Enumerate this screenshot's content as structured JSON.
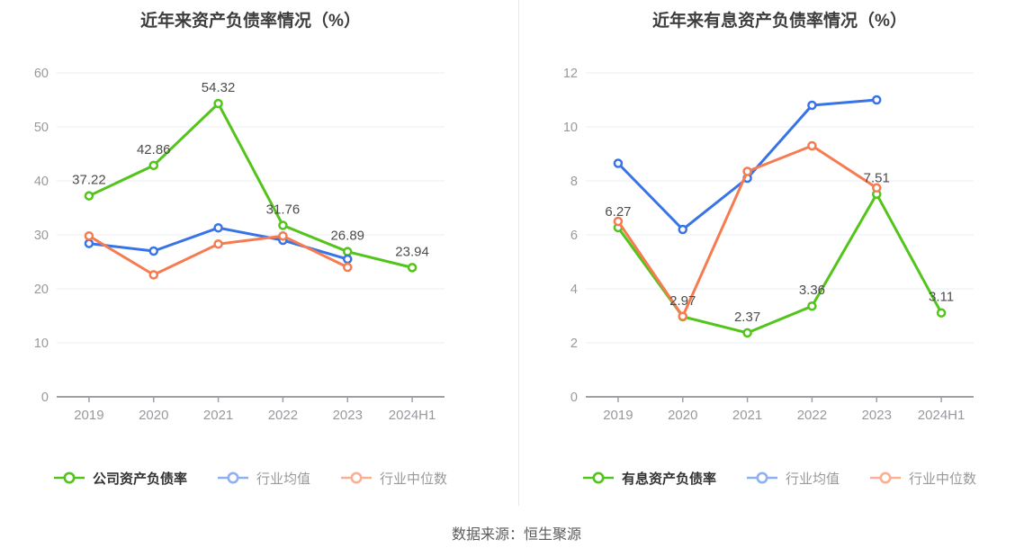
{
  "source_text": "数据来源：恒生聚源",
  "palette": {
    "green": "#52c41a",
    "blue": "#3873e8",
    "orange": "#f77b50",
    "legend_blue": "#8fb1f2",
    "legend_orange": "#fab093",
    "grid": "#e9eef6",
    "axis": "#9fa0a6",
    "tick_text": "#98999f",
    "label_text": "#4c4c4c",
    "title_text": "#3e3e3e"
  },
  "chart_data": [
    {
      "type": "line",
      "title": "近年来资产负债率情况（%）",
      "categories": [
        "2019",
        "2020",
        "2021",
        "2022",
        "2023",
        "2024H1"
      ],
      "ylim": [
        0,
        60
      ],
      "yticks": [
        0,
        10,
        20,
        30,
        40,
        50,
        60
      ],
      "grid": true,
      "legend_position": "bottom",
      "series": [
        {
          "name": "公司资产负债率",
          "color_key": "green",
          "values": [
            37.22,
            42.86,
            54.32,
            31.76,
            26.89,
            23.94
          ],
          "labels": [
            "37.22",
            "42.86",
            "54.32",
            "31.76",
            "26.89",
            "23.94"
          ]
        },
        {
          "name": "行业均值",
          "color_key": "blue",
          "values": [
            28.4,
            27.0,
            31.3,
            29.0,
            25.5,
            null
          ]
        },
        {
          "name": "行业中位数",
          "color_key": "orange",
          "values": [
            29.8,
            22.6,
            28.3,
            29.8,
            24.0,
            null
          ]
        }
      ]
    },
    {
      "type": "line",
      "title": "近年来有息资产负债率情况（%）",
      "categories": [
        "2019",
        "2020",
        "2021",
        "2022",
        "2023",
        "2024H1"
      ],
      "ylim": [
        0,
        12
      ],
      "yticks": [
        0,
        2,
        4,
        6,
        8,
        10,
        12
      ],
      "grid": true,
      "legend_position": "bottom",
      "series": [
        {
          "name": "有息资产负债率",
          "color_key": "green",
          "values": [
            6.27,
            2.97,
            2.37,
            3.36,
            7.51,
            3.11
          ],
          "labels": [
            "6.27",
            "2.97",
            "2.37",
            "3.36",
            "7.51",
            "3.11"
          ]
        },
        {
          "name": "行业均值",
          "color_key": "blue",
          "values": [
            8.65,
            6.2,
            8.1,
            10.8,
            11.0,
            null
          ]
        },
        {
          "name": "行业中位数",
          "color_key": "orange",
          "values": [
            6.5,
            2.98,
            8.35,
            9.3,
            7.74,
            null
          ]
        }
      ]
    }
  ]
}
